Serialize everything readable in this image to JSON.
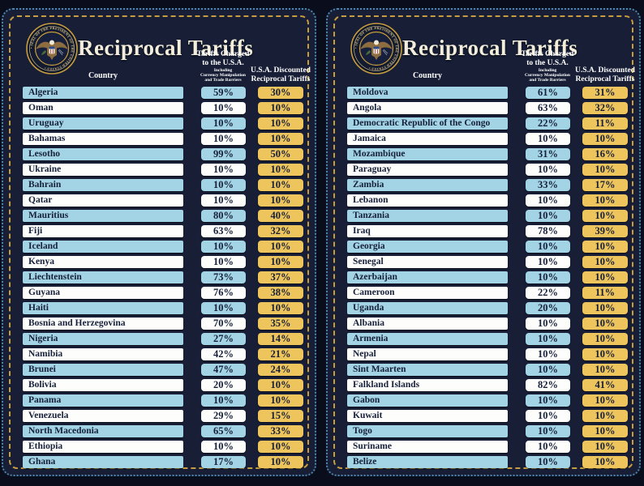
{
  "seal": {
    "name": "Seal of the President of the United States",
    "text": "• SEAL OF THE PRESIDENT OF THE UNITED STATES •"
  },
  "header": {
    "title": "Reciprocal Tariffs",
    "country_label": "Country",
    "charged_label": "Tariffs Charged\nto the U.S.A.",
    "charged_sublabel": "Including\nCurrency Manipulation\nand Trade Barriers",
    "discounted_label": "U.S.A. Discounted\nReciprocal Tariffs"
  },
  "colors": {
    "page_bg": "#0a0e1c",
    "card_bg": "#171e36",
    "gold_border": "#c79d3d",
    "blue_dotted_border": "#4b87ae",
    "row_blue": "#a3d4e5",
    "row_white": "#fdfdfb",
    "cell_gold": "#eec45c",
    "ink": "#16203a",
    "title_cream": "#f3eedc"
  },
  "chart_data": [
    {
      "type": "table",
      "title": "Reciprocal Tariffs",
      "columns": [
        "Country",
        "Tariffs Charged to the U.S.A. (Including Currency Manipulation and Trade Barriers)",
        "U.S.A. Discounted Reciprocal Tariffs"
      ],
      "rows": [
        [
          "Algeria",
          "59%",
          "30%"
        ],
        [
          "Oman",
          "10%",
          "10%"
        ],
        [
          "Uruguay",
          "10%",
          "10%"
        ],
        [
          "Bahamas",
          "10%",
          "10%"
        ],
        [
          "Lesotho",
          "99%",
          "50%"
        ],
        [
          "Ukraine",
          "10%",
          "10%"
        ],
        [
          "Bahrain",
          "10%",
          "10%"
        ],
        [
          "Qatar",
          "10%",
          "10%"
        ],
        [
          "Mauritius",
          "80%",
          "40%"
        ],
        [
          "Fiji",
          "63%",
          "32%"
        ],
        [
          "Iceland",
          "10%",
          "10%"
        ],
        [
          "Kenya",
          "10%",
          "10%"
        ],
        [
          "Liechtenstein",
          "73%",
          "37%"
        ],
        [
          "Guyana",
          "76%",
          "38%"
        ],
        [
          "Haiti",
          "10%",
          "10%"
        ],
        [
          "Bosnia and Herzegovina",
          "70%",
          "35%"
        ],
        [
          "Nigeria",
          "27%",
          "14%"
        ],
        [
          "Namibia",
          "42%",
          "21%"
        ],
        [
          "Brunei",
          "47%",
          "24%"
        ],
        [
          "Bolivia",
          "20%",
          "10%"
        ],
        [
          "Panama",
          "10%",
          "10%"
        ],
        [
          "Venezuela",
          "29%",
          "15%"
        ],
        [
          "North Macedonia",
          "65%",
          "33%"
        ],
        [
          "Ethiopia",
          "10%",
          "10%"
        ],
        [
          "Ghana",
          "17%",
          "10%"
        ]
      ]
    },
    {
      "type": "table",
      "title": "Reciprocal Tariffs",
      "columns": [
        "Country",
        "Tariffs Charged to the U.S.A. (Including Currency Manipulation and Trade Barriers)",
        "U.S.A. Discounted Reciprocal Tariffs"
      ],
      "rows": [
        [
          "Moldova",
          "61%",
          "31%"
        ],
        [
          "Angola",
          "63%",
          "32%"
        ],
        [
          "Democratic Republic of the Congo",
          "22%",
          "11%"
        ],
        [
          "Jamaica",
          "10%",
          "10%"
        ],
        [
          "Mozambique",
          "31%",
          "16%"
        ],
        [
          "Paraguay",
          "10%",
          "10%"
        ],
        [
          "Zambia",
          "33%",
          "17%"
        ],
        [
          "Lebanon",
          "10%",
          "10%"
        ],
        [
          "Tanzania",
          "10%",
          "10%"
        ],
        [
          "Iraq",
          "78%",
          "39%"
        ],
        [
          "Georgia",
          "10%",
          "10%"
        ],
        [
          "Senegal",
          "10%",
          "10%"
        ],
        [
          "Azerbaijan",
          "10%",
          "10%"
        ],
        [
          "Cameroon",
          "22%",
          "11%"
        ],
        [
          "Uganda",
          "20%",
          "10%"
        ],
        [
          "Albania",
          "10%",
          "10%"
        ],
        [
          "Armenia",
          "10%",
          "10%"
        ],
        [
          "Nepal",
          "10%",
          "10%"
        ],
        [
          "Sint Maarten",
          "10%",
          "10%"
        ],
        [
          "Falkland Islands",
          "82%",
          "41%"
        ],
        [
          "Gabon",
          "10%",
          "10%"
        ],
        [
          "Kuwait",
          "10%",
          "10%"
        ],
        [
          "Togo",
          "10%",
          "10%"
        ],
        [
          "Suriname",
          "10%",
          "10%"
        ],
        [
          "Belize",
          "10%",
          "10%"
        ]
      ]
    }
  ]
}
